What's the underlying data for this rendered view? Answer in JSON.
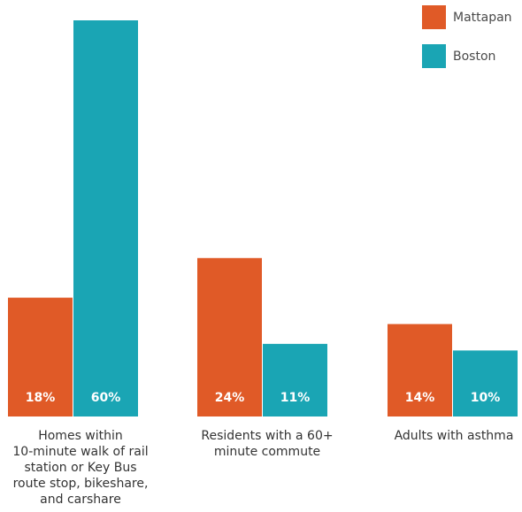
{
  "chart_data": {
    "type": "bar",
    "categories": [
      "Homes within 10-minute walk of rail station or Key Bus route stop, bikeshare, and carshare",
      "Residents with a 60+ minute commute",
      "Adults with asthma"
    ],
    "category_lines": [
      [
        "Homes within",
        "10-minute walk of rail",
        "station or Key Bus",
        "route stop, bikeshare,",
        "and carshare"
      ],
      [
        "Residents with a 60+",
        "minute commute"
      ],
      [
        "Adults with asthma"
      ]
    ],
    "series": [
      {
        "name": "Mattapan",
        "color": "#e05a27",
        "values": [
          18,
          24,
          14
        ],
        "labels": [
          "18%",
          "24%",
          "14%"
        ]
      },
      {
        "name": "Boston",
        "color": "#1aa5b4",
        "values": [
          60,
          11,
          10
        ],
        "labels": [
          "60%",
          "11%",
          "10%"
        ]
      }
    ],
    "ylim": [
      0,
      60
    ],
    "legend_position": "top-right",
    "grid": false,
    "title": "",
    "xlabel": "",
    "ylabel": ""
  }
}
